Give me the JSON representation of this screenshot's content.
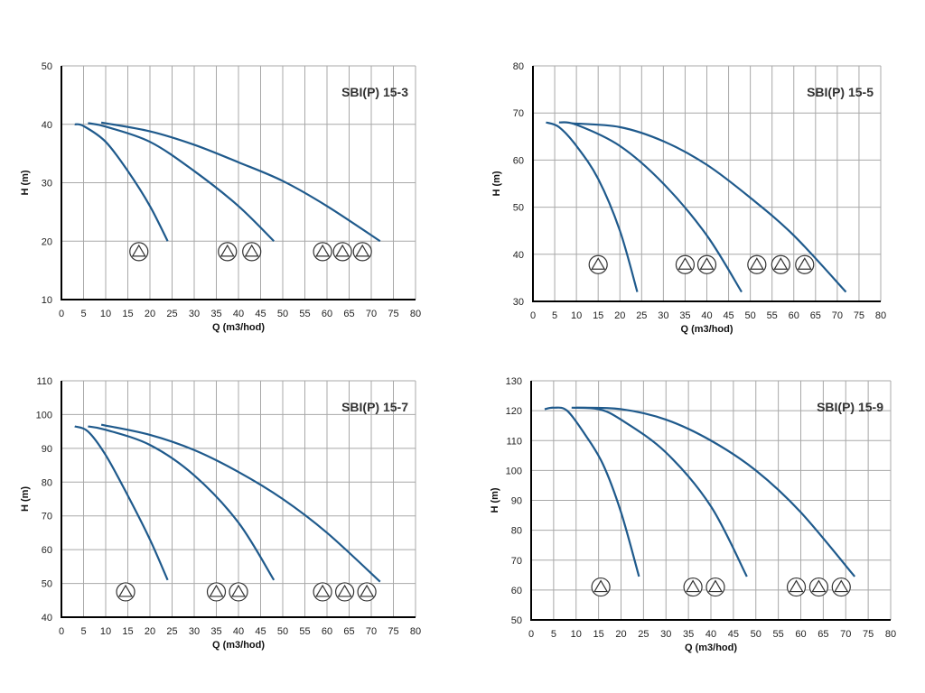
{
  "chart_data": [
    {
      "type": "line",
      "title": "SBI(P) 15-3",
      "xlabel": "Q (m3/hod)",
      "ylabel": "H (m)",
      "xlim": [
        0,
        80
      ],
      "ylim": [
        10,
        50
      ],
      "xticks": [
        0,
        5,
        10,
        15,
        20,
        25,
        30,
        35,
        40,
        45,
        50,
        55,
        60,
        65,
        70,
        75,
        80
      ],
      "yticks": [
        10,
        20,
        30,
        40,
        50
      ],
      "grid": true,
      "line_color": "#1f5a8c",
      "series": [
        {
          "name": "1 pump",
          "points": [
            [
              3,
              40
            ],
            [
              5,
              39.7
            ],
            [
              10,
              37
            ],
            [
              15,
              32
            ],
            [
              20,
              26
            ],
            [
              24,
              20
            ]
          ]
        },
        {
          "name": "2 pumps",
          "points": [
            [
              6,
              40.2
            ],
            [
              10,
              39.6
            ],
            [
              20,
              37
            ],
            [
              30,
              32
            ],
            [
              40,
              26
            ],
            [
              48,
              20
            ]
          ]
        },
        {
          "name": "3 pumps",
          "points": [
            [
              9,
              40.3
            ],
            [
              20,
              38.8
            ],
            [
              30,
              36.5
            ],
            [
              40,
              33.5
            ],
            [
              50,
              30.3
            ],
            [
              60,
              26
            ],
            [
              72,
              20
            ]
          ]
        }
      ],
      "pump_markers": {
        "y": 18.2,
        "x": [
          17.5,
          37.5,
          43,
          59,
          63.5,
          68
        ]
      }
    },
    {
      "type": "line",
      "title": "SBI(P) 15-5",
      "xlabel": "Q (m3/hod)",
      "ylabel": "H (m)",
      "xlim": [
        0,
        80
      ],
      "ylim": [
        30,
        80
      ],
      "xticks": [
        0,
        5,
        10,
        15,
        20,
        25,
        30,
        35,
        40,
        45,
        50,
        55,
        60,
        65,
        70,
        75,
        80
      ],
      "yticks": [
        30,
        40,
        50,
        60,
        70,
        80
      ],
      "grid": true,
      "line_color": "#1f5a8c",
      "series": [
        {
          "name": "1 pump",
          "points": [
            [
              3,
              68
            ],
            [
              6,
              67
            ],
            [
              10,
              63
            ],
            [
              15,
              56
            ],
            [
              20,
              45
            ],
            [
              24,
              32
            ]
          ]
        },
        {
          "name": "2 pumps",
          "points": [
            [
              6,
              68
            ],
            [
              10,
              67.5
            ],
            [
              20,
              63
            ],
            [
              30,
              55
            ],
            [
              40,
              44
            ],
            [
              48,
              32
            ]
          ]
        },
        {
          "name": "3 pumps",
          "points": [
            [
              9,
              67.8
            ],
            [
              20,
              67
            ],
            [
              30,
              64
            ],
            [
              40,
              59
            ],
            [
              50,
              52
            ],
            [
              60,
              44
            ],
            [
              72,
              32
            ]
          ]
        }
      ],
      "pump_markers": {
        "y": 37.8,
        "x": [
          15,
          35,
          40,
          51.5,
          57,
          62.5
        ]
      }
    },
    {
      "type": "line",
      "title": "SBI(P) 15-7",
      "xlabel": "Q (m3/hod)",
      "ylabel": "H (m)",
      "xlim": [
        0,
        80
      ],
      "ylim": [
        40,
        110
      ],
      "xticks": [
        0,
        5,
        10,
        15,
        20,
        25,
        30,
        35,
        40,
        45,
        50,
        55,
        60,
        65,
        70,
        75,
        80
      ],
      "yticks": [
        40,
        50,
        60,
        70,
        80,
        90,
        100,
        110
      ],
      "grid": true,
      "line_color": "#1f5a8c",
      "series": [
        {
          "name": "1 pump",
          "points": [
            [
              3,
              96.5
            ],
            [
              6,
              95
            ],
            [
              10,
              88
            ],
            [
              15,
              76
            ],
            [
              20,
              63
            ],
            [
              24,
              51
            ]
          ]
        },
        {
          "name": "2 pumps",
          "points": [
            [
              6,
              96.5
            ],
            [
              10,
              95.5
            ],
            [
              20,
              91
            ],
            [
              30,
              82
            ],
            [
              40,
              68
            ],
            [
              48,
              51
            ]
          ]
        },
        {
          "name": "3 pumps",
          "points": [
            [
              9,
              97
            ],
            [
              20,
              94
            ],
            [
              30,
              89.5
            ],
            [
              40,
              83
            ],
            [
              50,
              75
            ],
            [
              60,
              65
            ],
            [
              72,
              50.5
            ]
          ]
        }
      ],
      "pump_markers": {
        "y": 47.5,
        "x": [
          14.5,
          35,
          40,
          59,
          64,
          69
        ]
      }
    },
    {
      "type": "line",
      "title": "SBI(P) 15-9",
      "xlabel": "Q (m3/hod)",
      "ylabel": "H (m)",
      "xlim": [
        0,
        80
      ],
      "ylim": [
        50,
        130
      ],
      "xticks": [
        0,
        5,
        10,
        15,
        20,
        25,
        30,
        35,
        40,
        45,
        50,
        55,
        60,
        65,
        70,
        75,
        80
      ],
      "yticks": [
        50,
        60,
        70,
        80,
        90,
        100,
        110,
        120,
        130
      ],
      "grid": true,
      "line_color": "#1f5a8c",
      "series": [
        {
          "name": "1 pump",
          "points": [
            [
              3,
              120.5
            ],
            [
              5,
              121
            ],
            [
              8,
              120
            ],
            [
              12,
              112
            ],
            [
              16,
              102
            ],
            [
              20,
              86
            ],
            [
              24,
              64.5
            ]
          ]
        },
        {
          "name": "2 pumps",
          "points": [
            [
              9,
              121
            ],
            [
              15,
              120.5
            ],
            [
              20,
              117
            ],
            [
              30,
              106
            ],
            [
              40,
              88
            ],
            [
              48,
              64.5
            ]
          ]
        },
        {
          "name": "3 pumps",
          "points": [
            [
              10,
              121
            ],
            [
              20,
              120.5
            ],
            [
              30,
              117
            ],
            [
              40,
              110
            ],
            [
              50,
              100
            ],
            [
              60,
              86
            ],
            [
              72,
              64.5
            ]
          ]
        }
      ],
      "pump_markers": {
        "y": 61,
        "x": [
          15.5,
          36,
          41,
          59,
          64,
          69
        ]
      }
    }
  ]
}
